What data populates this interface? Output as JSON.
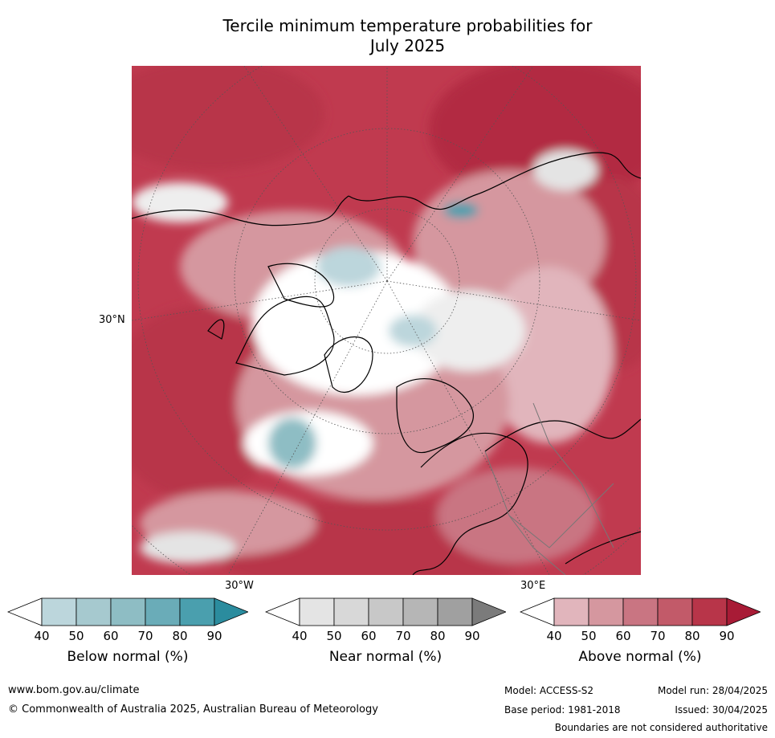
{
  "title_line1": "Tercile minimum temperature probabilities for",
  "title_line2": "July 2025",
  "map": {
    "lat_label": "30°N",
    "lon_label_left": "30°W",
    "lon_label_right": "30°E"
  },
  "legends": [
    {
      "label": "Below normal (%)",
      "ticks": [
        "40",
        "50",
        "60",
        "70",
        "80",
        "90"
      ],
      "colors": [
        "#ffffff",
        "#bcd6dc",
        "#a6c9cf",
        "#8ebdc4",
        "#6aacb8",
        "#4a9fae",
        "#2b8c9e"
      ]
    },
    {
      "label": "Near normal (%)",
      "ticks": [
        "40",
        "50",
        "60",
        "70",
        "80",
        "90"
      ],
      "colors": [
        "#ffffff",
        "#e4e4e4",
        "#d8d8d8",
        "#c8c8c8",
        "#b6b6b6",
        "#a0a0a0",
        "#7b7b7b"
      ]
    },
    {
      "label": "Above normal (%)",
      "ticks": [
        "40",
        "50",
        "60",
        "70",
        "80",
        "90"
      ],
      "colors": [
        "#ffffff",
        "#e1b5bc",
        "#d5979f",
        "#c97582",
        "#c25a69",
        "#b83549",
        "#a81b36"
      ]
    }
  ],
  "footer": {
    "url": "www.bom.gov.au/climate",
    "copyright": "© Commonwealth of Australia 2025, Australian Bureau of Meteorology",
    "model": "Model: ACCESS-S2",
    "model_run": "Model run: 28/04/2025",
    "base_period": "Base period: 1981-2018",
    "issued": "Issued: 30/04/2025",
    "disclaimer": "Boundaries are not considered authoritative"
  }
}
